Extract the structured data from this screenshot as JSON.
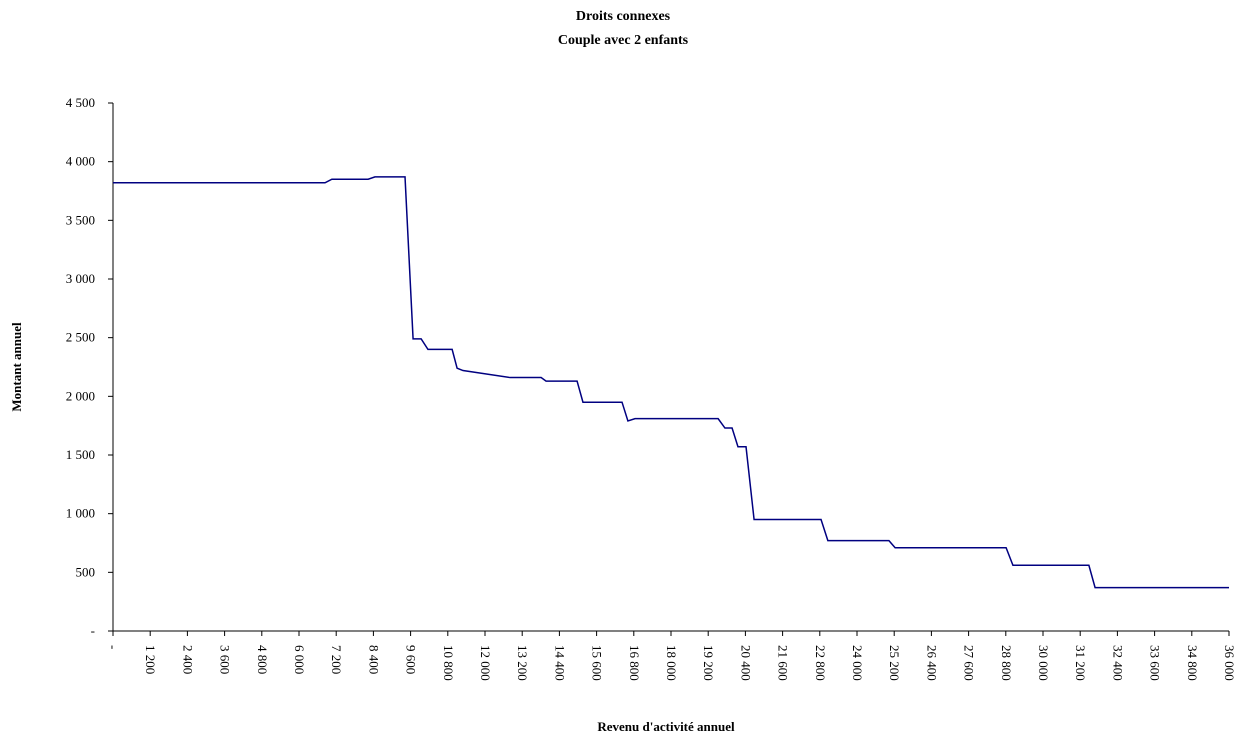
{
  "chart_data": {
    "type": "line",
    "title": "Droits connexes",
    "subtitle": "Couple avec 2 enfants",
    "x_label": "Revenu d'activité annuel",
    "y_label": "Montant annuel",
    "x": [
      0,
      6840,
      7060,
      8230,
      8450,
      9420,
      9680,
      9940,
      10160,
      10940,
      11100,
      11290,
      12810,
      13810,
      13970,
      14970,
      15160,
      16420,
      16610,
      16840,
      19520,
      19740,
      19970,
      20160,
      20420,
      20680,
      22840,
      23060,
      25030,
      25230,
      28810,
      29030,
      31480,
      31680,
      36000
    ],
    "series": [
      {
        "name": "Montant annuel",
        "color": "#000080",
        "values": [
          3820,
          3820,
          3850,
          3850,
          3870,
          3870,
          2490,
          2490,
          2400,
          2400,
          2240,
          2220,
          2160,
          2160,
          2130,
          2130,
          1950,
          1950,
          1790,
          1810,
          1810,
          1730,
          1730,
          1570,
          1570,
          950,
          950,
          770,
          770,
          710,
          710,
          560,
          560,
          370,
          370
        ]
      }
    ],
    "xlim": [
      0,
      36000
    ],
    "ylim": [
      0,
      4500
    ],
    "xticks": [
      {
        "value": 0,
        "label": "-"
      },
      {
        "value": 1200,
        "label": "1 200"
      },
      {
        "value": 2400,
        "label": "2 400"
      },
      {
        "value": 3600,
        "label": "3 600"
      },
      {
        "value": 4800,
        "label": "4 800"
      },
      {
        "value": 6000,
        "label": "6 000"
      },
      {
        "value": 7200,
        "label": "7 200"
      },
      {
        "value": 8400,
        "label": "8 400"
      },
      {
        "value": 9600,
        "label": "9 600"
      },
      {
        "value": 10800,
        "label": "10 800"
      },
      {
        "value": 12000,
        "label": "12 000"
      },
      {
        "value": 13200,
        "label": "13 200"
      },
      {
        "value": 14400,
        "label": "14 400"
      },
      {
        "value": 15600,
        "label": "15 600"
      },
      {
        "value": 16800,
        "label": "16 800"
      },
      {
        "value": 18000,
        "label": "18 000"
      },
      {
        "value": 19200,
        "label": "19 200"
      },
      {
        "value": 20400,
        "label": "20 400"
      },
      {
        "value": 21600,
        "label": "21 600"
      },
      {
        "value": 22800,
        "label": "22 800"
      },
      {
        "value": 24000,
        "label": "24 000"
      },
      {
        "value": 25200,
        "label": "25 200"
      },
      {
        "value": 26400,
        "label": "26 400"
      },
      {
        "value": 27600,
        "label": "27 600"
      },
      {
        "value": 28800,
        "label": "28 800"
      },
      {
        "value": 30000,
        "label": "30 000"
      },
      {
        "value": 31200,
        "label": "31 200"
      },
      {
        "value": 32400,
        "label": "32 400"
      },
      {
        "value": 33600,
        "label": "33 600"
      },
      {
        "value": 34800,
        "label": "34 800"
      },
      {
        "value": 36000,
        "label": "36 000"
      }
    ],
    "yticks": [
      {
        "value": 0,
        "label": "-"
      },
      500,
      {
        "value": 1000,
        "label": "1 000"
      },
      {
        "value": 1500,
        "label": "1 500"
      },
      {
        "value": 2000,
        "label": "2 000"
      },
      {
        "value": 2500,
        "label": "2 500"
      },
      {
        "value": 3000,
        "label": "3 000"
      },
      {
        "value": 3500,
        "label": "3 500"
      },
      {
        "value": 4000,
        "label": "4 000"
      },
      {
        "value": 4500,
        "label": "4 500"
      }
    ],
    "grid": false
  }
}
